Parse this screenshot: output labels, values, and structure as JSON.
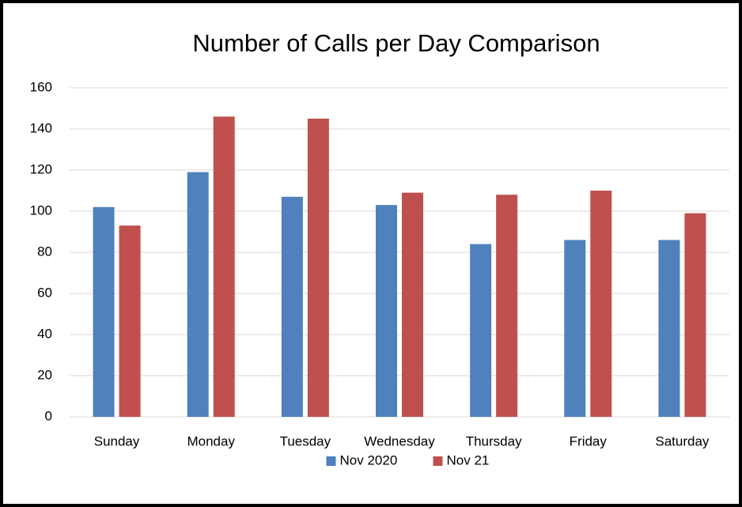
{
  "chart_data": {
    "type": "bar",
    "title": "Number of Calls per Day Comparison",
    "categories": [
      "Sunday",
      "Monday",
      "Tuesday",
      "Wednesday",
      "Thursday",
      "Friday",
      "Saturday"
    ],
    "series": [
      {
        "name": "Nov 2020",
        "color": "#4f81bd",
        "values": [
          102,
          119,
          107,
          103,
          84,
          86,
          86
        ]
      },
      {
        "name": "Nov 21",
        "color": "#c0504d",
        "values": [
          93,
          146,
          145,
          109,
          108,
          110,
          99
        ]
      }
    ],
    "ylim": [
      0,
      160
    ],
    "yticks": [
      0,
      20,
      40,
      60,
      80,
      100,
      120,
      140,
      160
    ],
    "grid": true,
    "legend": "bottom"
  }
}
